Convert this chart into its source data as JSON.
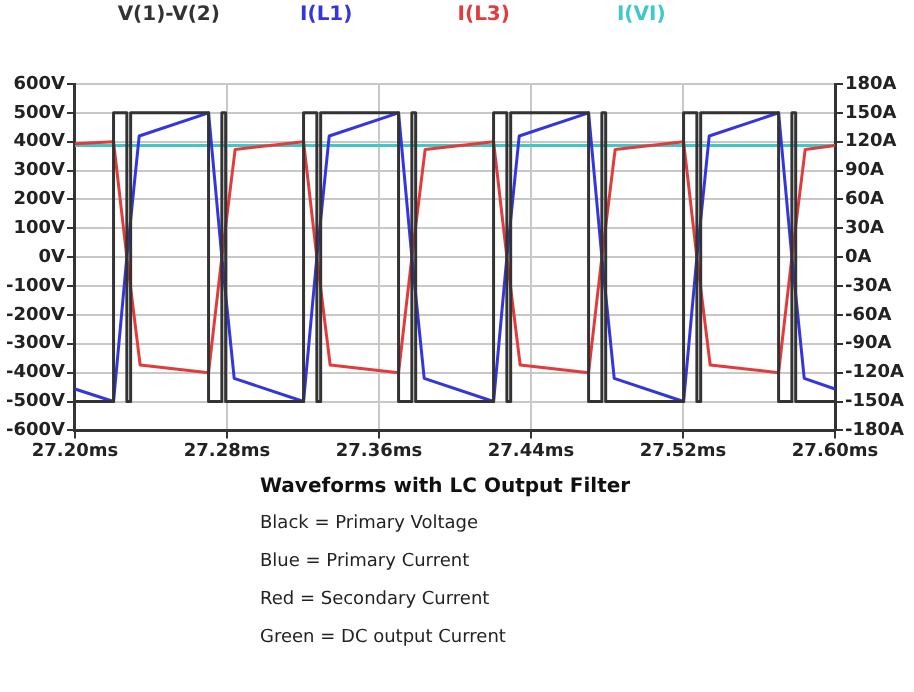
{
  "chart_data": {
    "type": "line",
    "title": "Waveforms with LC Output Filter",
    "annotations": [
      "Black = Primary Voltage",
      "Blue = Primary Current",
      "Red = Secondary Current",
      "Green = DC output Current"
    ],
    "xlim": [
      27.2,
      27.6
    ],
    "xticks": [
      {
        "value": 27.2,
        "label": "27.20ms"
      },
      {
        "value": 27.28,
        "label": "27.28ms"
      },
      {
        "value": 27.36,
        "label": "27.36ms"
      },
      {
        "value": 27.44,
        "label": "27.44ms"
      },
      {
        "value": 27.52,
        "label": "27.52ms"
      },
      {
        "value": 27.6,
        "label": "27.60ms"
      }
    ],
    "ylim": [
      -600,
      600
    ],
    "yticks": [
      {
        "value": -600,
        "label": "-600V"
      },
      {
        "value": -500,
        "label": "-500V"
      },
      {
        "value": -400,
        "label": "-400V"
      },
      {
        "value": -300,
        "label": "-300V"
      },
      {
        "value": -200,
        "label": "-200V"
      },
      {
        "value": -100,
        "label": "-100V"
      },
      {
        "value": 0,
        "label": "0V"
      },
      {
        "value": 100,
        "label": "100V"
      },
      {
        "value": 200,
        "label": "200V"
      },
      {
        "value": 300,
        "label": "300V"
      },
      {
        "value": 400,
        "label": "400V"
      },
      {
        "value": 500,
        "label": "500V"
      },
      {
        "value": 600,
        "label": "600V"
      }
    ],
    "y2lim": [
      -180,
      180
    ],
    "y2ticks": [
      {
        "value": -180,
        "label": "-180A"
      },
      {
        "value": -150,
        "label": "-150A"
      },
      {
        "value": -120,
        "label": "-120A"
      },
      {
        "value": -90,
        "label": "-90A"
      },
      {
        "value": -60,
        "label": "-60A"
      },
      {
        "value": -30,
        "label": "-30A"
      },
      {
        "value": 0,
        "label": "0A"
      },
      {
        "value": 30,
        "label": "30A"
      },
      {
        "value": 60,
        "label": "60A"
      },
      {
        "value": 90,
        "label": "90A"
      },
      {
        "value": 120,
        "label": "120A"
      },
      {
        "value": 150,
        "label": "150A"
      },
      {
        "value": 180,
        "label": "180A"
      }
    ],
    "grid": true,
    "legend": "top",
    "series": [
      {
        "name": "V(1)-V(2)",
        "color": "#333333",
        "x": [
          27.2,
          27.2203,
          27.2203,
          27.2273,
          27.2273,
          27.2293,
          27.2293,
          27.2703,
          27.2703,
          27.2773,
          27.2773,
          27.2793,
          27.2793,
          27.3203,
          27.3203,
          27.3273,
          27.3273,
          27.3293,
          27.3293,
          27.3703,
          27.3703,
          27.3773,
          27.3773,
          27.3793,
          27.3793,
          27.4203,
          27.4203,
          27.4273,
          27.4273,
          27.4293,
          27.4293,
          27.4703,
          27.4703,
          27.4773,
          27.4773,
          27.4793,
          27.4793,
          27.5203,
          27.5203,
          27.5273,
          27.5273,
          27.5293,
          27.5293,
          27.5703,
          27.5703,
          27.5773,
          27.5773,
          27.5793,
          27.5793,
          27.6
        ],
        "values": [
          -500,
          -500,
          500,
          500,
          -500,
          -500,
          500,
          500,
          -500,
          -500,
          500,
          500,
          -500,
          -500,
          500,
          500,
          -500,
          -500,
          500,
          500,
          -500,
          -500,
          500,
          500,
          -500,
          -500,
          500,
          500,
          -500,
          -500,
          500,
          500,
          -500,
          -500,
          500,
          500,
          -500,
          -500,
          500,
          500,
          -500,
          -500,
          500,
          500,
          -500,
          -500,
          500,
          500,
          -500,
          -500
        ]
      },
      {
        "name": "I(L1)",
        "color": "#3535dd",
        "axis": "y2",
        "x": [
          27.2,
          27.2203,
          27.2273,
          27.2338,
          27.2703,
          27.2773,
          27.2838,
          27.3203,
          27.3273,
          27.3338,
          27.3703,
          27.3773,
          27.3838,
          27.4203,
          27.4273,
          27.4338,
          27.4703,
          27.4773,
          27.4838,
          27.5203,
          27.5273,
          27.5338,
          27.5703,
          27.5773,
          27.5838,
          27.6
        ],
        "values": [
          -137,
          -150,
          0,
          126,
          150,
          0,
          -126,
          -150,
          0,
          126,
          150,
          0,
          -126,
          -150,
          0,
          126,
          150,
          0,
          -126,
          -150,
          0,
          126,
          150,
          0,
          -126,
          -137
        ]
      },
      {
        "name": "I(L3)",
        "color": "#e03c3c",
        "axis": "y2",
        "x": [
          27.2,
          27.2203,
          27.2273,
          27.2343,
          27.2703,
          27.2773,
          27.2843,
          27.3203,
          27.3273,
          27.3343,
          27.3703,
          27.3773,
          27.3843,
          27.4203,
          27.4273,
          27.4343,
          27.4703,
          27.4773,
          27.4843,
          27.5203,
          27.5273,
          27.5343,
          27.5703,
          27.5773,
          27.5843,
          27.6
        ],
        "values": [
          118,
          120,
          0,
          -112,
          -120,
          0,
          112,
          120,
          0,
          -112,
          -120,
          0,
          112,
          120,
          0,
          -112,
          -120,
          0,
          112,
          120,
          0,
          -112,
          -120,
          0,
          112,
          116
        ]
      },
      {
        "name": "I(VI)",
        "color": "#40c8c8",
        "axis": "y2",
        "x": [
          27.2,
          27.6
        ],
        "values": [
          116,
          116
        ]
      }
    ]
  }
}
